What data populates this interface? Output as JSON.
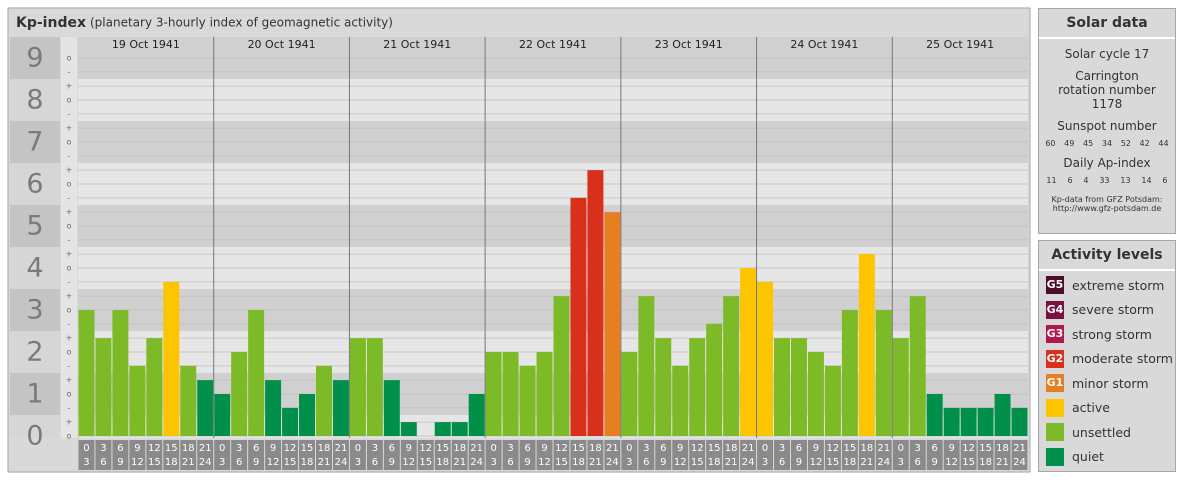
{
  "chart_data": {
    "type": "bar",
    "title": "Kp-index",
    "subtitle": "(planetary 3-hourly index of geomagnetic activity)",
    "ylim": [
      0,
      9.5
    ],
    "yticks": [
      0,
      1,
      2,
      3,
      4,
      5,
      6,
      7,
      8,
      9
    ],
    "minor_ticks": [
      {
        "value": 0,
        "label": "o"
      },
      {
        "value": 0.33,
        "label": "+"
      },
      {
        "value": 0.67,
        "label": "-"
      },
      {
        "value": 1,
        "label": "o"
      },
      {
        "value": 1.33,
        "label": "+"
      },
      {
        "value": 1.67,
        "label": "-"
      },
      {
        "value": 2,
        "label": "o"
      },
      {
        "value": 2.33,
        "label": "+"
      },
      {
        "value": 2.67,
        "label": "-"
      },
      {
        "value": 3,
        "label": "o"
      },
      {
        "value": 3.33,
        "label": "+"
      },
      {
        "value": 3.67,
        "label": "-"
      },
      {
        "value": 4,
        "label": "o"
      },
      {
        "value": 4.33,
        "label": "+"
      },
      {
        "value": 4.67,
        "label": "-"
      },
      {
        "value": 5,
        "label": "o"
      },
      {
        "value": 5.33,
        "label": "+"
      },
      {
        "value": 5.67,
        "label": "-"
      },
      {
        "value": 6,
        "label": "o"
      },
      {
        "value": 6.33,
        "label": "+"
      },
      {
        "value": 6.67,
        "label": "-"
      },
      {
        "value": 7,
        "label": "o"
      },
      {
        "value": 7.33,
        "label": "+"
      },
      {
        "value": 7.67,
        "label": "-"
      },
      {
        "value": 8,
        "label": "o"
      },
      {
        "value": 8.33,
        "label": "+"
      },
      {
        "value": 8.67,
        "label": "-"
      },
      {
        "value": 9,
        "label": "o"
      }
    ],
    "time_slots": [
      [
        "0",
        "3"
      ],
      [
        "3",
        "6"
      ],
      [
        "6",
        "9"
      ],
      [
        "9",
        "12"
      ],
      [
        "12",
        "15"
      ],
      [
        "15",
        "18"
      ],
      [
        "18",
        "21"
      ],
      [
        "21",
        "24"
      ]
    ],
    "days": [
      {
        "label": "19 Oct 1941",
        "values": [
          3,
          2.33,
          3,
          1.67,
          2.33,
          3.67,
          1.67,
          1.33
        ],
        "colors": [
          "#7cbb27",
          "#7cbb27",
          "#7cbb27",
          "#7cbb27",
          "#7cbb27",
          "#fdc400",
          "#7cbb27",
          "#00904a"
        ]
      },
      {
        "label": "20 Oct 1941",
        "values": [
          1,
          2,
          3,
          1.33,
          0.67,
          1,
          1.67,
          1.33
        ],
        "colors": [
          "#00904a",
          "#7cbb27",
          "#7cbb27",
          "#00904a",
          "#00904a",
          "#00904a",
          "#7cbb27",
          "#00904a"
        ]
      },
      {
        "label": "21 Oct 1941",
        "values": [
          2.33,
          2.33,
          1.33,
          0.33,
          0,
          0.33,
          0.33,
          1
        ],
        "colors": [
          "#7cbb27",
          "#7cbb27",
          "#00904a",
          "#00904a",
          "#00904a",
          "#00904a",
          "#00904a",
          "#00904a"
        ]
      },
      {
        "label": "22 Oct 1941",
        "values": [
          2,
          2,
          1.67,
          2,
          3.33,
          5.67,
          6.33,
          5.33
        ],
        "colors": [
          "#7cbb27",
          "#7cbb27",
          "#7cbb27",
          "#7cbb27",
          "#7cbb27",
          "#d9301c",
          "#d9301c",
          "#e67e22"
        ]
      },
      {
        "label": "23 Oct 1941",
        "values": [
          2,
          3.33,
          2.33,
          1.67,
          2.33,
          2.67,
          3.33,
          4
        ],
        "colors": [
          "#7cbb27",
          "#7cbb27",
          "#7cbb27",
          "#7cbb27",
          "#7cbb27",
          "#7cbb27",
          "#7cbb27",
          "#fdc400"
        ]
      },
      {
        "label": "24 Oct 1941",
        "values": [
          3.67,
          2.33,
          2.33,
          2,
          1.67,
          3,
          4.33,
          3
        ],
        "colors": [
          "#fdc400",
          "#7cbb27",
          "#7cbb27",
          "#7cbb27",
          "#7cbb27",
          "#7cbb27",
          "#fdc400",
          "#7cbb27"
        ]
      },
      {
        "label": "25 Oct 1941",
        "values": [
          2.33,
          3.33,
          1,
          0.67,
          0.67,
          0.67,
          1,
          0.67
        ],
        "colors": [
          "#7cbb27",
          "#7cbb27",
          "#00904a",
          "#00904a",
          "#00904a",
          "#00904a",
          "#00904a",
          "#00904a"
        ]
      }
    ]
  },
  "solar_data": {
    "title": "Solar data",
    "cycle": "Solar cycle 17",
    "carrington": "Carrington rotation number 1178",
    "sunspot_title": "Sunspot number",
    "sunspot": [
      60,
      49,
      45,
      34,
      52,
      42,
      44
    ],
    "ap_title": "Daily Ap-index",
    "ap": [
      11,
      6,
      4,
      33,
      13,
      14,
      6
    ],
    "source": "Kp-data from GFZ Potsdam:",
    "url": "http://www.gfz-potsdam.de"
  },
  "activity_levels": {
    "title": "Activity levels",
    "items": [
      {
        "badge": "G5",
        "label": "extreme storm",
        "color": "#4b0f2a"
      },
      {
        "badge": "G4",
        "label": "severe storm",
        "color": "#7a1240"
      },
      {
        "badge": "G3",
        "label": "strong storm",
        "color": "#b0174f"
      },
      {
        "badge": "G2",
        "label": "moderate storm",
        "color": "#d9301c"
      },
      {
        "badge": "G1",
        "label": "minor storm",
        "color": "#e67e22"
      },
      {
        "label": "active",
        "color": "#fdc400"
      },
      {
        "label": "unsettled",
        "color": "#7cbb27"
      },
      {
        "label": "quiet",
        "color": "#00904a"
      }
    ]
  }
}
